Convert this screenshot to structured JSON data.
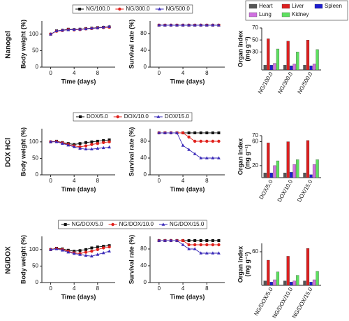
{
  "row_labels": [
    "Nanogel",
    "DOX HCl",
    "NG/DOX"
  ],
  "chart_data": [
    {
      "type": "line",
      "x_label": "Time (days)",
      "y_label": "Body weight (%)",
      "x": [
        0,
        1,
        2,
        3,
        4,
        5,
        6,
        7,
        8,
        9,
        10
      ],
      "xlim": [
        -1.5,
        11
      ],
      "xticks": [
        0,
        4,
        8
      ],
      "ylim": [
        0,
        140
      ],
      "yticks": [
        0,
        50,
        100
      ],
      "series": [
        {
          "name": "NG/100.0",
          "color": "#111111",
          "marker": "square",
          "values": [
            100,
            110,
            112,
            115,
            114,
            115,
            117,
            118,
            120,
            121,
            122
          ]
        },
        {
          "name": "NG/300.0",
          "color": "#e0201b",
          "marker": "circle",
          "values": [
            100,
            109,
            111,
            114,
            113,
            114,
            116,
            117,
            119,
            120,
            121
          ]
        },
        {
          "name": "NG/500.0",
          "color": "#3a2ab8",
          "marker": "triangle",
          "values": [
            100,
            110,
            112,
            113,
            114,
            115,
            116,
            118,
            119,
            121,
            123
          ]
        }
      ]
    },
    {
      "type": "line",
      "x_label": "Time (days)",
      "y_label": "Survival rate (%)",
      "x": [
        0,
        1,
        2,
        3,
        4,
        5,
        6,
        7,
        8,
        9,
        10
      ],
      "xlim": [
        -1.5,
        11
      ],
      "xticks": [
        0,
        4,
        8
      ],
      "ylim": [
        0,
        110
      ],
      "yticks": [
        0,
        40,
        80
      ],
      "series": [
        {
          "color": "#111111",
          "marker": "square",
          "values": [
            100,
            100,
            100,
            100,
            100,
            100,
            100,
            100,
            100,
            100,
            100
          ]
        },
        {
          "color": "#e0201b",
          "marker": "circle",
          "values": [
            100,
            100,
            100,
            100,
            100,
            100,
            100,
            100,
            100,
            100,
            100
          ]
        },
        {
          "color": "#3a2ab8",
          "marker": "triangle",
          "values": [
            100,
            100,
            100,
            100,
            100,
            100,
            100,
            100,
            100,
            100,
            100
          ]
        }
      ]
    },
    {
      "type": "bar",
      "y_label": [
        "Organ index",
        "(mg g⁻¹)"
      ],
      "categories": [
        "NG/100.0",
        "NG/300.0",
        "NG/500.0"
      ],
      "ylim": [
        0,
        70
      ],
      "yticks": [
        30,
        50,
        70
      ],
      "series": [
        {
          "name": "Heart",
          "color": "#555555",
          "values": [
            8,
            8,
            8
          ]
        },
        {
          "name": "Liver",
          "color": "#dd1f1f",
          "values": [
            52,
            48,
            50
          ]
        },
        {
          "name": "Spleen",
          "color": "#1d1dcf",
          "values": [
            8,
            7,
            7
          ]
        },
        {
          "name": "Lung",
          "color": "#d070e0",
          "values": [
            11,
            10,
            10
          ]
        },
        {
          "name": "Kidney",
          "color": "#5ee060",
          "values": [
            35,
            30,
            34
          ]
        }
      ]
    },
    {
      "type": "line",
      "x_label": "Time (days)",
      "y_label": "Body weight (%)",
      "x": [
        0,
        1,
        2,
        3,
        4,
        5,
        6,
        7,
        8,
        9,
        10
      ],
      "xlim": [
        -1.5,
        11
      ],
      "xticks": [
        0,
        4,
        8
      ],
      "ylim": [
        0,
        140
      ],
      "yticks": [
        0,
        50,
        100
      ],
      "series": [
        {
          "name": "DOX/5.0",
          "color": "#111111",
          "marker": "square",
          "values": [
            100,
            102,
            98,
            95,
            92,
            95,
            98,
            100,
            102,
            104,
            106
          ]
        },
        {
          "name": "DOX/10.0",
          "color": "#e0201b",
          "marker": "circle",
          "values": [
            100,
            101,
            97,
            92,
            88,
            85,
            88,
            92,
            95,
            98,
            100
          ]
        },
        {
          "name": "DOX/15.0",
          "color": "#3a2ab8",
          "marker": "triangle",
          "values": [
            100,
            100,
            95,
            90,
            85,
            80,
            78,
            78,
            80,
            82,
            84
          ]
        }
      ]
    },
    {
      "type": "line",
      "x_label": "Time (days)",
      "y_label": "Survival rate (%)",
      "x": [
        0,
        1,
        2,
        3,
        4,
        5,
        6,
        7,
        8,
        9,
        10
      ],
      "xlim": [
        -1.5,
        11
      ],
      "xticks": [
        0,
        4,
        8
      ],
      "ylim": [
        0,
        110
      ],
      "yticks": [
        0,
        40,
        80
      ],
      "series": [
        {
          "color": "#111111",
          "marker": "square",
          "values": [
            100,
            100,
            100,
            100,
            100,
            100,
            100,
            100,
            100,
            100,
            100
          ]
        },
        {
          "color": "#e0201b",
          "marker": "circle",
          "values": [
            100,
            100,
            100,
            100,
            100,
            90,
            80,
            80,
            80,
            80,
            80
          ]
        },
        {
          "color": "#3a2ab8",
          "marker": "triangle",
          "values": [
            100,
            100,
            100,
            100,
            70,
            60,
            50,
            40,
            40,
            40,
            40
          ]
        }
      ]
    },
    {
      "type": "bar",
      "y_label": [
        "Organ index",
        "(mg g⁻¹)"
      ],
      "categories": [
        "DOX/5.0",
        "DOX/10.0",
        "DOX/15.0"
      ],
      "ylim": [
        0,
        70
      ],
      "yticks": [
        20,
        60,
        70
      ],
      "series": [
        {
          "color": "#555555",
          "values": [
            8,
            8,
            8
          ]
        },
        {
          "color": "#dd1f1f",
          "values": [
            58,
            60,
            62
          ]
        },
        {
          "color": "#1d1dcf",
          "values": [
            8,
            9,
            5
          ]
        },
        {
          "color": "#d070e0",
          "values": [
            20,
            22,
            22
          ]
        },
        {
          "color": "#5ee060",
          "values": [
            28,
            30,
            30
          ]
        }
      ]
    },
    {
      "type": "line",
      "x_label": "Time (days)",
      "y_label": "Body weight (%)",
      "x": [
        0,
        1,
        2,
        3,
        4,
        5,
        6,
        7,
        8,
        9,
        10
      ],
      "xlim": [
        -1.5,
        11
      ],
      "xticks": [
        0,
        4,
        8
      ],
      "ylim": [
        0,
        140
      ],
      "yticks": [
        0,
        50,
        100
      ],
      "series": [
        {
          "name": "NG/DOX/5.0",
          "color": "#111111",
          "marker": "square",
          "values": [
            100,
            104,
            102,
            98,
            95,
            97,
            100,
            105,
            108,
            110,
            112
          ]
        },
        {
          "name": "NG/DOX/10.0",
          "color": "#e0201b",
          "marker": "circle",
          "values": [
            100,
            103,
            100,
            95,
            90,
            88,
            92,
            95,
            100,
            105,
            108
          ]
        },
        {
          "name": "NG/DOX/15.0",
          "color": "#3a2ab8",
          "marker": "triangle",
          "values": [
            100,
            102,
            98,
            92,
            88,
            85,
            82,
            80,
            85,
            90,
            95
          ]
        }
      ]
    },
    {
      "type": "line",
      "x_label": "Time (days)",
      "y_label": "Survival rate (%)",
      "x": [
        0,
        1,
        2,
        3,
        4,
        5,
        6,
        7,
        8,
        9,
        10
      ],
      "xlim": [
        -1.5,
        11
      ],
      "xticks": [
        0,
        4,
        8
      ],
      "ylim": [
        0,
        110
      ],
      "yticks": [
        0,
        40,
        80
      ],
      "series": [
        {
          "color": "#111111",
          "marker": "square",
          "values": [
            100,
            100,
            100,
            100,
            100,
            100,
            100,
            100,
            100,
            100,
            100
          ]
        },
        {
          "color": "#e0201b",
          "marker": "circle",
          "values": [
            100,
            100,
            100,
            100,
            100,
            90,
            90,
            90,
            90,
            90,
            90
          ]
        },
        {
          "color": "#3a2ab8",
          "marker": "triangle",
          "values": [
            100,
            100,
            100,
            100,
            90,
            80,
            80,
            70,
            70,
            70,
            70
          ]
        }
      ]
    },
    {
      "type": "bar",
      "y_label": [
        "Organ index",
        "(mg g⁻¹)"
      ],
      "categories": [
        "NG/DOX/5.0",
        "NG/DOX/10.0",
        "NG/DOX/15.0"
      ],
      "ylim": [
        0,
        75
      ],
      "yticks": [
        60
      ],
      "series": [
        {
          "color": "#555555",
          "values": [
            8,
            8,
            8
          ]
        },
        {
          "color": "#dd1f1f",
          "values": [
            45,
            52,
            66
          ]
        },
        {
          "color": "#1d1dcf",
          "values": [
            6,
            6,
            6
          ]
        },
        {
          "color": "#d070e0",
          "values": [
            10,
            8,
            10
          ]
        },
        {
          "color": "#5ee060",
          "values": [
            24,
            18,
            25
          ]
        }
      ]
    }
  ]
}
